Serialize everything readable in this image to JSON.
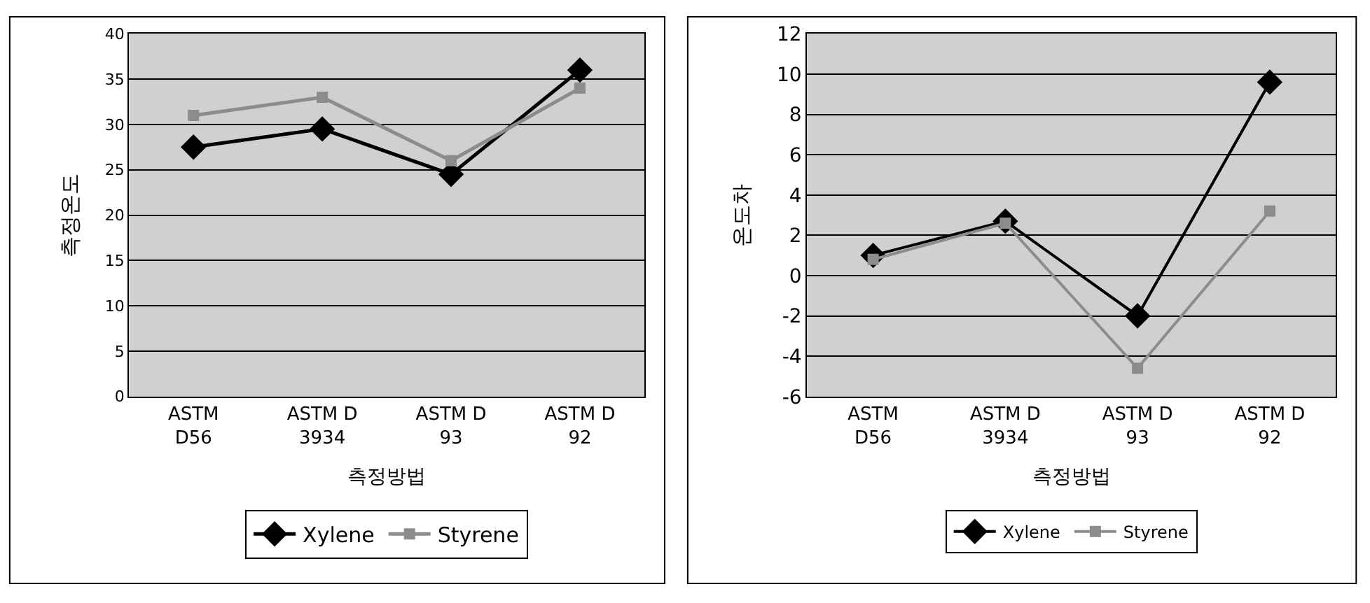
{
  "chart_data": [
    {
      "type": "line",
      "xlabel": "측정방법",
      "ylabel": "측정온도",
      "categories": [
        "ASTM\nD56",
        "ASTM D\n3934",
        "ASTM D\n93",
        "ASTM D\n92"
      ],
      "ylim": [
        0,
        40
      ],
      "yticks": [
        0,
        5,
        10,
        15,
        20,
        25,
        30,
        35,
        40
      ],
      "grid": "y",
      "legend": "bottom",
      "series": [
        {
          "name": "Xylene",
          "color": "#000000",
          "marker": "diamond",
          "values": [
            27.5,
            29.5,
            24.5,
            36
          ]
        },
        {
          "name": "Styrene",
          "color": "#8c8c8c",
          "marker": "square",
          "values": [
            31,
            33,
            26,
            34
          ]
        }
      ]
    },
    {
      "type": "line",
      "xlabel": "측정방법",
      "ylabel": "온도차",
      "categories": [
        "ASTM\nD56",
        "ASTM D\n3934",
        "ASTM D\n93",
        "ASTM D\n92"
      ],
      "ylim": [
        -6,
        12
      ],
      "yticks": [
        -6,
        -4,
        -2,
        0,
        2,
        4,
        6,
        8,
        10,
        12
      ],
      "grid": "y",
      "legend": "bottom",
      "series": [
        {
          "name": "Xylene",
          "color": "#000000",
          "marker": "diamond",
          "values": [
            1,
            2.7,
            -2,
            9.6
          ]
        },
        {
          "name": "Styrene",
          "color": "#8c8c8c",
          "marker": "square",
          "values": [
            0.8,
            2.6,
            -4.6,
            3.2
          ]
        }
      ]
    }
  ]
}
